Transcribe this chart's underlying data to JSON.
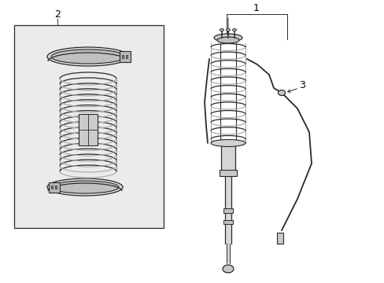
{
  "bg_color": "#ffffff",
  "line_color": "#2a2a2a",
  "box_fill": "#ebebeb",
  "label1": "1",
  "label2": "2",
  "label3": "3",
  "label_fontsize": 9
}
